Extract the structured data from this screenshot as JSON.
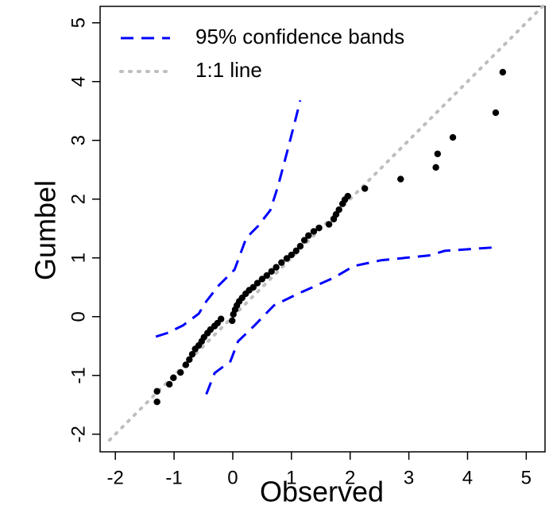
{
  "chart_data": {
    "type": "scatter",
    "x_label": "Observed",
    "y_label": "Gumbel",
    "xlim": [
      -2.26,
      5.32
    ],
    "ylim": [
      -2.3,
      5.28
    ],
    "xticks": [
      -2,
      -1,
      0,
      1,
      2,
      3,
      4,
      5
    ],
    "yticks": [
      -2,
      -1,
      0,
      1,
      2,
      3,
      4,
      5
    ],
    "legend": "top-left",
    "series": [
      {
        "kind": "points",
        "color": "#000000",
        "x": [
          -1.29,
          -1.29,
          -1.08,
          -1.01,
          -0.89,
          -0.8,
          -0.74,
          -0.69,
          -0.64,
          -0.58,
          -0.53,
          -0.49,
          -0.43,
          -0.38,
          -0.31,
          -0.26,
          -0.2,
          -0.01,
          0.01,
          0.04,
          0.07,
          0.11,
          0.16,
          0.22,
          0.28,
          0.35,
          0.42,
          0.5,
          0.58,
          0.66,
          0.74,
          0.83,
          0.92,
          1.0,
          1.08,
          1.15,
          1.22,
          1.29,
          1.38,
          1.47,
          1.64,
          1.72,
          1.76,
          1.81,
          1.87,
          1.91,
          1.96,
          2.25,
          2.86,
          3.46,
          3.49,
          3.75,
          4.48,
          4.6
        ],
        "y": [
          -1.45,
          -1.27,
          -1.15,
          -1.04,
          -0.95,
          -0.82,
          -0.73,
          -0.64,
          -0.55,
          -0.49,
          -0.42,
          -0.35,
          -0.28,
          -0.22,
          -0.16,
          -0.11,
          -0.04,
          -0.07,
          0.04,
          0.12,
          0.19,
          0.26,
          0.32,
          0.39,
          0.45,
          0.5,
          0.57,
          0.64,
          0.7,
          0.77,
          0.84,
          0.92,
          0.99,
          1.05,
          1.12,
          1.2,
          1.3,
          1.38,
          1.45,
          1.51,
          1.57,
          1.66,
          1.74,
          1.82,
          1.92,
          1.99,
          2.05,
          2.18,
          2.34,
          2.54,
          2.77,
          3.05,
          3.47,
          4.16
        ]
      },
      {
        "kind": "line",
        "name": "95% confidence bands",
        "color": "#0000ff",
        "style": "dashed",
        "x": [
          -1.31,
          -1.12,
          -0.85,
          -0.58,
          -0.45,
          -0.24,
          0.03,
          0.23,
          0.43,
          0.64,
          0.77,
          0.93,
          1.07,
          1.15,
          null,
          -0.45,
          -0.31,
          -0.04,
          0.09,
          0.37,
          0.7,
          1.11,
          1.72,
          2.06,
          2.53,
          3.34,
          3.61,
          4.49
        ],
        "y": [
          -0.34,
          -0.28,
          -0.15,
          0.05,
          0.26,
          0.53,
          0.8,
          1.34,
          1.54,
          1.81,
          2.22,
          2.82,
          3.36,
          3.68,
          null,
          -1.32,
          -0.96,
          -0.76,
          -0.42,
          -0.15,
          0.19,
          0.39,
          0.66,
          0.86,
          0.96,
          1.04,
          1.12,
          1.18
        ]
      },
      {
        "kind": "line",
        "name": "1:1 line",
        "color": "#bebebe",
        "style": "dotted",
        "x": [
          -2.1,
          5.3
        ],
        "y": [
          -2.1,
          5.3
        ]
      }
    ]
  }
}
